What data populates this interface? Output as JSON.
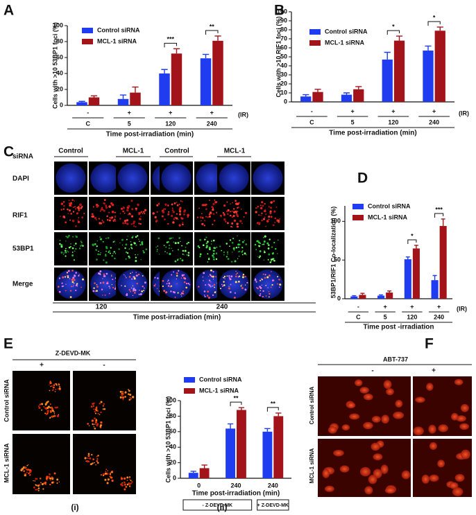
{
  "chart_data": [
    {
      "type": "bar",
      "panel": "A",
      "y_label": "Cells with >10  53BP1 foci (%)",
      "x_label": "Time post-irradiation (min)",
      "categories": [
        "C",
        "5",
        "120",
        "240"
      ],
      "ir_labels": [
        "-",
        "+",
        "+",
        "+"
      ],
      "ir_axis_label": "(IR)",
      "series": [
        {
          "name": "Control siRNA",
          "color": "#1f3cf0",
          "values": [
            4,
            8,
            40,
            59
          ],
          "errors": [
            1,
            5,
            5,
            5
          ]
        },
        {
          "name": "MCL-1 siRNA",
          "color": "#a3141a",
          "values": [
            10,
            16,
            65,
            81
          ],
          "errors": [
            2,
            7,
            6,
            6
          ]
        }
      ],
      "significance": [
        null,
        null,
        "***",
        "**"
      ],
      "ylim": [
        0,
        100
      ],
      "yticks": [
        0,
        20,
        40,
        60,
        80,
        100
      ]
    },
    {
      "type": "bar",
      "panel": "B",
      "y_label": "Cells with >10  RIF1 foci (%)",
      "x_label": "Time post-irradiation (min)",
      "categories": [
        "C",
        "5",
        "120",
        "240"
      ],
      "ir_labels": [
        "-",
        "+",
        "+",
        "+"
      ],
      "ir_axis_label": "(IR)",
      "series": [
        {
          "name": "Control siRNA",
          "color": "#1f3cf0",
          "values": [
            6,
            8,
            47,
            57
          ],
          "errors": [
            2,
            2,
            8,
            5
          ]
        },
        {
          "name": "MCL-1 siRNA",
          "color": "#a3141a",
          "values": [
            11,
            14,
            68,
            79
          ],
          "errors": [
            3,
            3,
            5,
            4
          ]
        }
      ],
      "significance": [
        null,
        null,
        "*",
        "*"
      ],
      "ylim": [
        0,
        100
      ],
      "yticks": [
        0,
        10,
        20,
        30,
        40,
        50,
        60,
        70,
        80,
        90,
        100
      ]
    },
    {
      "type": "bar",
      "panel": "D",
      "y_label": "53BP1/RIF1 Co-localization (%)",
      "x_label": "Time  post -irradiation",
      "categories": [
        "C",
        "5",
        "120",
        "240"
      ],
      "ir_labels": [
        "-",
        "+",
        "+",
        "+"
      ],
      "ir_axis_label": "(IR)",
      "series": [
        {
          "name": "Control siRNA",
          "color": "#1f3cf0",
          "values": [
            3,
            4,
            51,
            24
          ],
          "errors": [
            1,
            1,
            3,
            6
          ]
        },
        {
          "name": "MCL-1 siRNA",
          "color": "#a3141a",
          "values": [
            5,
            8,
            65,
            94
          ],
          "errors": [
            2,
            2,
            4,
            9
          ]
        }
      ],
      "significance": [
        null,
        null,
        "*",
        "***"
      ],
      "ylim": [
        0,
        120
      ],
      "yticks": [
        0,
        50,
        100
      ]
    },
    {
      "type": "bar",
      "panel": "E",
      "y_label": "Cells with >10  53BP1 foci (%)",
      "x_label": "Time  post-irradiation (min)",
      "categories": [
        "0",
        "240",
        "240"
      ],
      "series": [
        {
          "name": "Control siRNA",
          "color": "#1f3cf0",
          "values": [
            7,
            64,
            60
          ],
          "errors": [
            2,
            6,
            4
          ]
        },
        {
          "name": "MCL-1 siRNA",
          "color": "#a3141a",
          "values": [
            13,
            88,
            80
          ],
          "errors": [
            4,
            3,
            4
          ]
        }
      ],
      "significance": [
        null,
        "**",
        "**"
      ],
      "treatment_labels": [
        "- Z-DEVD-MK",
        "+ Z-DEVD-MK"
      ],
      "sub_label": "(ii)",
      "ylim": [
        0,
        100
      ],
      "yticks": [
        0,
        20,
        40,
        60,
        80,
        100
      ]
    }
  ],
  "figure": {
    "letters": [
      "A",
      "B",
      "C",
      "D",
      "E",
      "F"
    ],
    "panel_c": {
      "row_header": "siRNA",
      "columns": [
        "Control",
        "MCL-1",
        "Control",
        "MCL-1"
      ],
      "rows": [
        "DAPI",
        "RIF1",
        "53BP1",
        "Merge"
      ],
      "times": [
        "120",
        "240"
      ],
      "x_label": "Time post-irradiation (min)"
    },
    "panel_e": {
      "treatment": "Z-DEVD-MK",
      "columns": [
        "+",
        "-"
      ],
      "rows": [
        "Control siRNA",
        "MCL-1 siRNA"
      ],
      "sub_label": "(i)"
    },
    "panel_f": {
      "treatment": "ABT-737",
      "columns": [
        "-",
        "+"
      ],
      "rows": [
        "Control siRNA",
        "MCL-1 siRNA"
      ]
    }
  }
}
